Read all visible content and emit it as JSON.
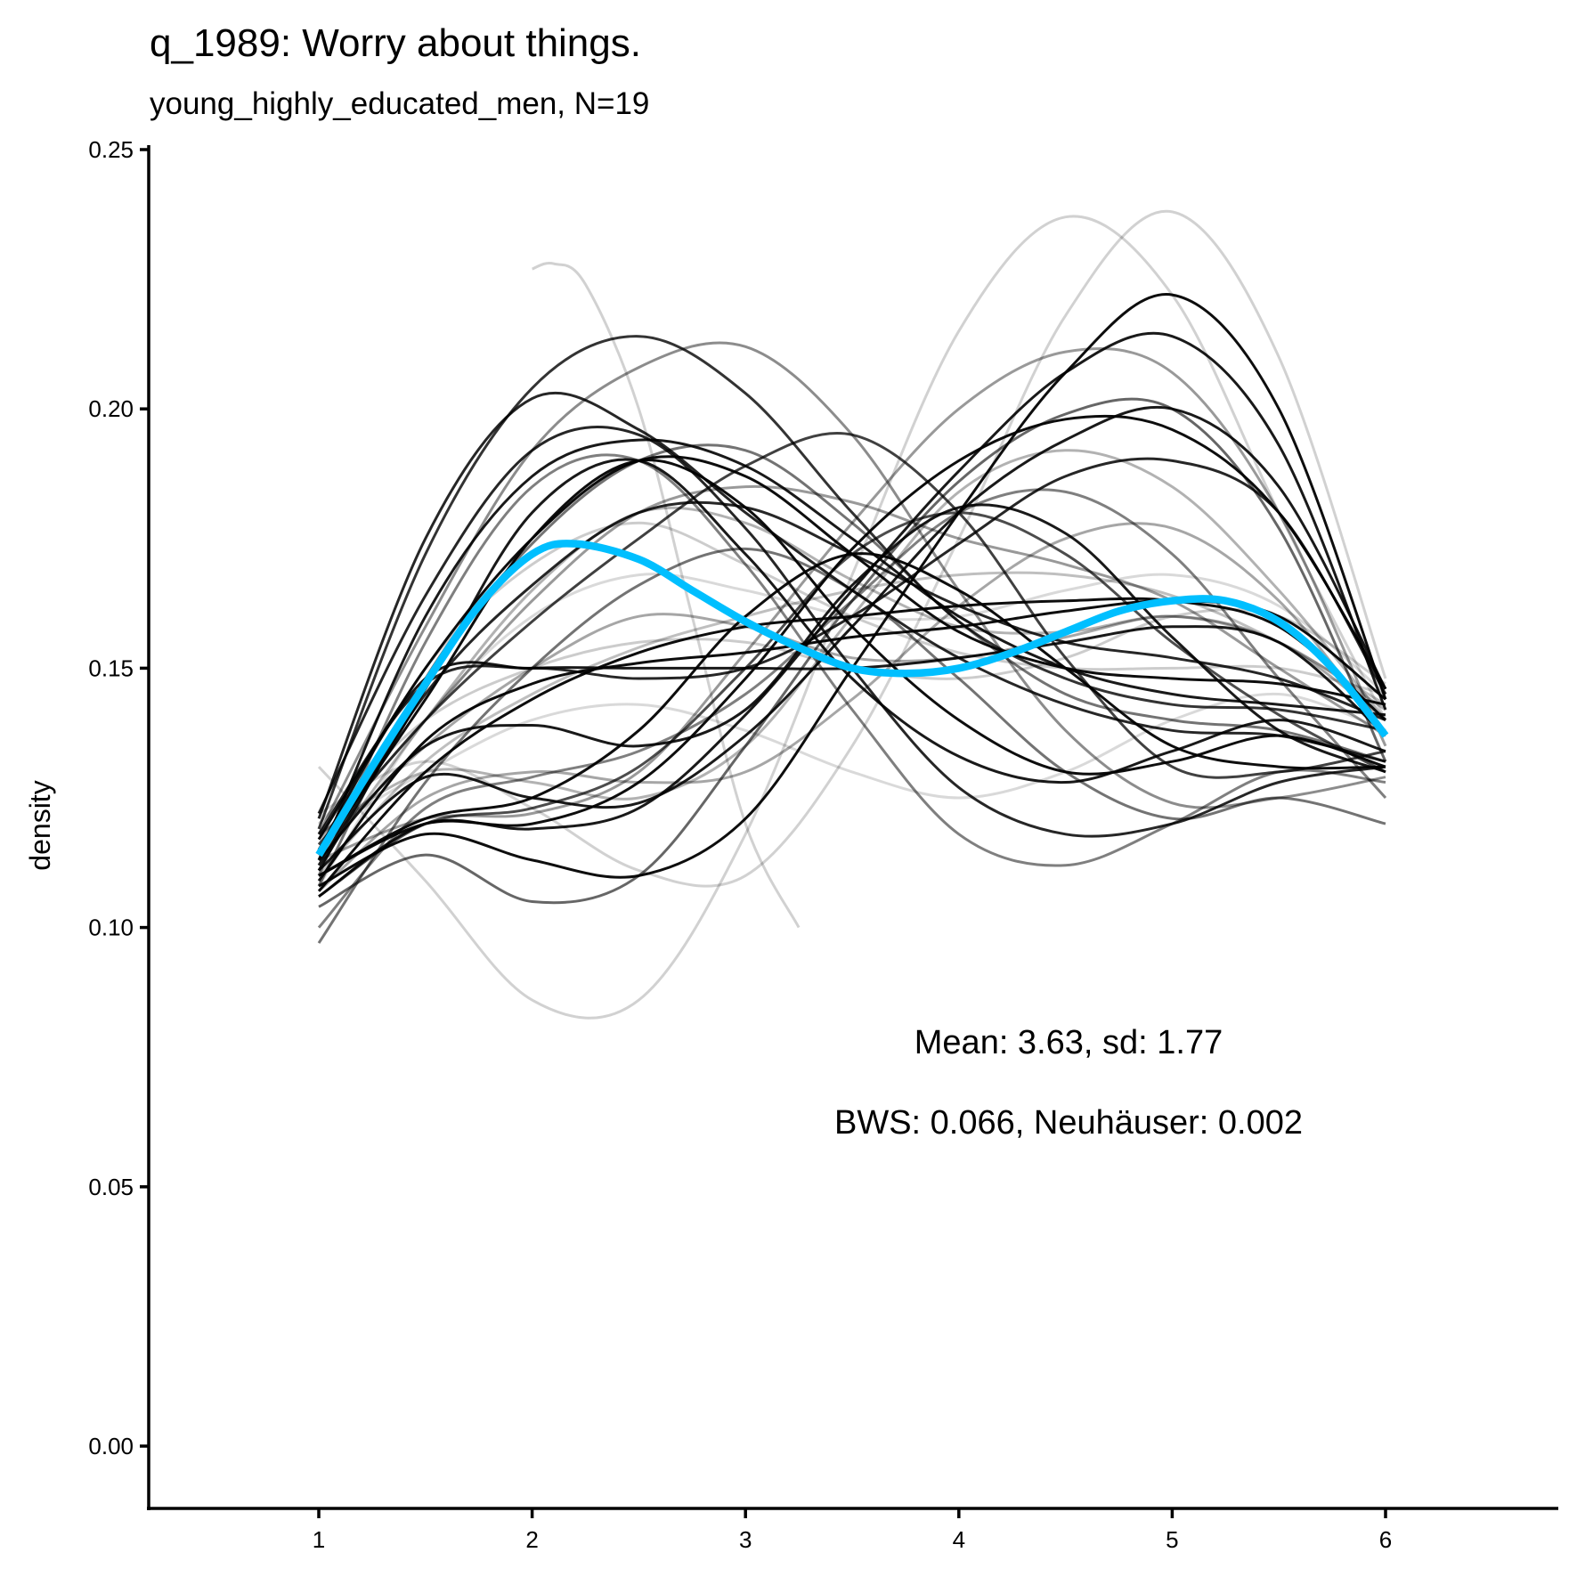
{
  "chart_data": {
    "type": "line",
    "title": "q_1989: Worry about things.",
    "subtitle": "young_highly_educated_men, N=19",
    "xlabel": "",
    "ylabel": "density",
    "xlim": [
      0.207,
      6.81
    ],
    "ylim": [
      -0.012,
      0.252
    ],
    "x_ticks": [
      1,
      2,
      3,
      4,
      5,
      6
    ],
    "x_tick_labels": [
      "1",
      "2",
      "3",
      "4",
      "5",
      "6"
    ],
    "y_ticks": [
      0,
      0.05,
      0.1,
      0.15,
      0.2,
      0.25
    ],
    "y_tick_labels": [
      "0.00",
      "0.05",
      "0.10",
      "0.15",
      "0.20",
      "0.25"
    ],
    "grid": false,
    "legend": "none",
    "annotations": [
      "Mean: 3.63, sd: 1.77",
      "BWS: 0.066, Neuhäuser: 0.002"
    ],
    "mean_color": "#00BFFF",
    "bootstrap_color": "#000000",
    "mean_curve": {
      "name": "mean density",
      "x": [
        1,
        1.25,
        1.5,
        1.75,
        2,
        2.2,
        2.5,
        2.75,
        3,
        3.25,
        3.5,
        3.75,
        4,
        4.25,
        4.5,
        4.75,
        5,
        5.25,
        5.5,
        5.75,
        6
      ],
      "y": [
        0.114,
        0.131,
        0.147,
        0.162,
        0.172,
        0.174,
        0.171,
        0.165,
        0.159,
        0.154,
        0.15,
        0.149,
        0.15,
        0.153,
        0.157,
        0.161,
        0.163,
        0.163,
        0.159,
        0.15,
        0.137
      ]
    },
    "bootstrap_x": [
      1,
      1.5,
      2,
      2.5,
      3,
      3.5,
      4,
      4.5,
      5,
      5.5,
      6
    ],
    "bootstrap_curves": [
      {
        "opacity": 0.85,
        "y": [
          0.121,
          0.175,
          0.202,
          0.196,
          0.18,
          0.165,
          0.152,
          0.143,
          0.138,
          0.137,
          0.132
        ]
      },
      {
        "opacity": 0.8,
        "y": [
          0.119,
          0.172,
          0.204,
          0.214,
          0.203,
          0.18,
          0.159,
          0.148,
          0.143,
          0.142,
          0.138
        ]
      },
      {
        "opacity": 0.9,
        "y": [
          0.113,
          0.16,
          0.187,
          0.194,
          0.189,
          0.175,
          0.16,
          0.15,
          0.145,
          0.143,
          0.141
        ]
      },
      {
        "opacity": 0.95,
        "y": [
          0.117,
          0.15,
          0.175,
          0.19,
          0.187,
          0.172,
          0.157,
          0.15,
          0.148,
          0.147,
          0.143
        ]
      },
      {
        "opacity": 0.85,
        "y": [
          0.112,
          0.145,
          0.166,
          0.18,
          0.181,
          0.172,
          0.162,
          0.155,
          0.152,
          0.148,
          0.14
        ]
      },
      {
        "opacity": 0.95,
        "y": [
          0.11,
          0.12,
          0.12,
          0.128,
          0.148,
          0.173,
          0.19,
          0.198,
          0.196,
          0.18,
          0.146
        ]
      },
      {
        "opacity": 0.95,
        "y": [
          0.108,
          0.118,
          0.113,
          0.11,
          0.121,
          0.15,
          0.18,
          0.207,
          0.222,
          0.2,
          0.144
        ]
      },
      {
        "opacity": 0.9,
        "y": [
          0.106,
          0.12,
          0.119,
          0.123,
          0.141,
          0.165,
          0.188,
          0.207,
          0.214,
          0.193,
          0.142
        ]
      },
      {
        "opacity": 0.9,
        "y": [
          0.111,
          0.129,
          0.125,
          0.124,
          0.137,
          0.158,
          0.18,
          0.194,
          0.2,
          0.185,
          0.146
        ]
      },
      {
        "opacity": 0.85,
        "y": [
          0.118,
          0.147,
          0.15,
          0.148,
          0.15,
          0.16,
          0.174,
          0.187,
          0.19,
          0.18,
          0.145
        ]
      },
      {
        "opacity": 0.95,
        "y": [
          0.109,
          0.136,
          0.147,
          0.151,
          0.153,
          0.156,
          0.158,
          0.161,
          0.163,
          0.16,
          0.144
        ]
      },
      {
        "opacity": 0.95,
        "y": [
          0.107,
          0.13,
          0.144,
          0.153,
          0.158,
          0.16,
          0.162,
          0.163,
          0.163,
          0.158,
          0.14
        ]
      },
      {
        "opacity": 0.9,
        "y": [
          0.115,
          0.148,
          0.15,
          0.15,
          0.15,
          0.15,
          0.152,
          0.155,
          0.158,
          0.155,
          0.137
        ]
      },
      {
        "opacity": 0.95,
        "y": [
          0.114,
          0.144,
          0.175,
          0.19,
          0.181,
          0.158,
          0.14,
          0.13,
          0.132,
          0.137,
          0.131
        ]
      },
      {
        "opacity": 0.9,
        "y": [
          0.111,
          0.146,
          0.18,
          0.19,
          0.172,
          0.148,
          0.133,
          0.128,
          0.134,
          0.14,
          0.134
        ]
      },
      {
        "opacity": 0.85,
        "y": [
          0.122,
          0.164,
          0.192,
          0.195,
          0.177,
          0.15,
          0.127,
          0.118,
          0.12,
          0.128,
          0.131
        ]
      },
      {
        "opacity": 0.9,
        "y": [
          0.113,
          0.135,
          0.139,
          0.135,
          0.142,
          0.166,
          0.181,
          0.176,
          0.156,
          0.138,
          0.13
        ]
      },
      {
        "opacity": 0.95,
        "y": [
          0.11,
          0.121,
          0.125,
          0.138,
          0.16,
          0.172,
          0.165,
          0.15,
          0.135,
          0.131,
          0.131
        ]
      },
      {
        "opacity": 0.75,
        "y": [
          0.116,
          0.14,
          0.159,
          0.175,
          0.189,
          0.195,
          0.18,
          0.152,
          0.131,
          0.13,
          0.134
        ]
      },
      {
        "opacity": 0.7,
        "y": [
          0.106,
          0.12,
          0.123,
          0.131,
          0.15,
          0.172,
          0.18,
          0.172,
          0.155,
          0.141,
          0.13
        ]
      },
      {
        "opacity": 0.6,
        "y": [
          0.104,
          0.114,
          0.105,
          0.11,
          0.135,
          0.163,
          0.186,
          0.199,
          0.2,
          0.177,
          0.132
        ]
      },
      {
        "opacity": 0.55,
        "y": [
          0.097,
          0.128,
          0.15,
          0.166,
          0.173,
          0.165,
          0.148,
          0.13,
          0.121,
          0.125,
          0.12
        ]
      },
      {
        "opacity": 0.5,
        "y": [
          0.1,
          0.123,
          0.129,
          0.134,
          0.145,
          0.163,
          0.18,
          0.184,
          0.172,
          0.148,
          0.125
        ]
      },
      {
        "opacity": 0.55,
        "y": [
          0.108,
          0.148,
          0.174,
          0.19,
          0.192,
          0.178,
          0.159,
          0.145,
          0.14,
          0.138,
          0.132
        ]
      },
      {
        "opacity": 0.5,
        "y": [
          0.11,
          0.155,
          0.185,
          0.19,
          0.17,
          0.142,
          0.118,
          0.112,
          0.12,
          0.13,
          0.128
        ]
      },
      {
        "opacity": 0.45,
        "y": [
          0.118,
          0.158,
          0.192,
          0.208,
          0.212,
          0.195,
          0.165,
          0.138,
          0.124,
          0.125,
          0.129
        ]
      },
      {
        "opacity": 0.4,
        "y": [
          0.117,
          0.14,
          0.163,
          0.18,
          0.185,
          0.182,
          0.175,
          0.17,
          0.163,
          0.15,
          0.137
        ]
      },
      {
        "opacity": 0.4,
        "y": [
          0.113,
          0.121,
          0.122,
          0.13,
          0.153,
          0.178,
          0.2,
          0.211,
          0.207,
          0.18,
          0.135
        ]
      },
      {
        "opacity": 0.35,
        "y": [
          0.115,
          0.135,
          0.15,
          0.16,
          0.158,
          0.152,
          0.152,
          0.156,
          0.16,
          0.155,
          0.14
        ]
      },
      {
        "opacity": 0.35,
        "y": [
          0.107,
          0.125,
          0.13,
          0.128,
          0.13,
          0.144,
          0.162,
          0.175,
          0.177,
          0.163,
          0.137
        ]
      },
      {
        "opacity": 0.3,
        "y": [
          0.112,
          0.14,
          0.165,
          0.18,
          0.178,
          0.167,
          0.158,
          0.157,
          0.16,
          0.155,
          0.142
        ]
      },
      {
        "opacity": 0.3,
        "y": [
          0.118,
          0.13,
          0.128,
          0.125,
          0.135,
          0.16,
          0.184,
          0.192,
          0.185,
          0.165,
          0.14
        ]
      },
      {
        "opacity": 0.25,
        "y": [
          0.11,
          0.132,
          0.145,
          0.154,
          0.16,
          0.165,
          0.168,
          0.168,
          0.164,
          0.155,
          0.143
        ]
      },
      {
        "opacity": 0.2,
        "y": [
          0.115,
          0.15,
          0.17,
          0.178,
          0.17,
          0.16,
          0.153,
          0.15,
          0.15,
          0.15,
          0.145
        ]
      },
      {
        "opacity": 0.2,
        "y": [
          0.12,
          0.14,
          0.15,
          0.155,
          0.155,
          0.15,
          0.148,
          0.152,
          0.16,
          0.16,
          0.147
        ]
      },
      {
        "opacity": 0.18,
        "y": [
          0.131,
          0.109,
          0.086,
          0.086,
          0.118,
          0.168,
          0.215,
          0.237,
          0.222,
          0.18,
          0.14
        ]
      },
      {
        "opacity": 0.18,
        "y": [
          0.122,
          0.132,
          0.123,
          0.111,
          0.11,
          0.135,
          0.175,
          0.218,
          0.238,
          0.21,
          0.148
        ]
      },
      {
        "opacity": 0.15,
        "y": [
          0.118,
          0.13,
          0.14,
          0.143,
          0.138,
          0.13,
          0.125,
          0.13,
          0.14,
          0.145,
          0.138
        ]
      },
      {
        "opacity": 0.15,
        "y": [
          0.108,
          0.14,
          0.16,
          0.168,
          0.165,
          0.16,
          0.16,
          0.165,
          0.168,
          0.162,
          0.145
        ]
      }
    ],
    "partial_curve": {
      "opacity": 0.18,
      "x": [
        2.0,
        2.1,
        2.25,
        2.5,
        2.75,
        3.0,
        3.25
      ],
      "y": [
        0.227,
        0.228,
        0.224,
        0.2,
        0.16,
        0.12,
        0.1
      ]
    }
  }
}
